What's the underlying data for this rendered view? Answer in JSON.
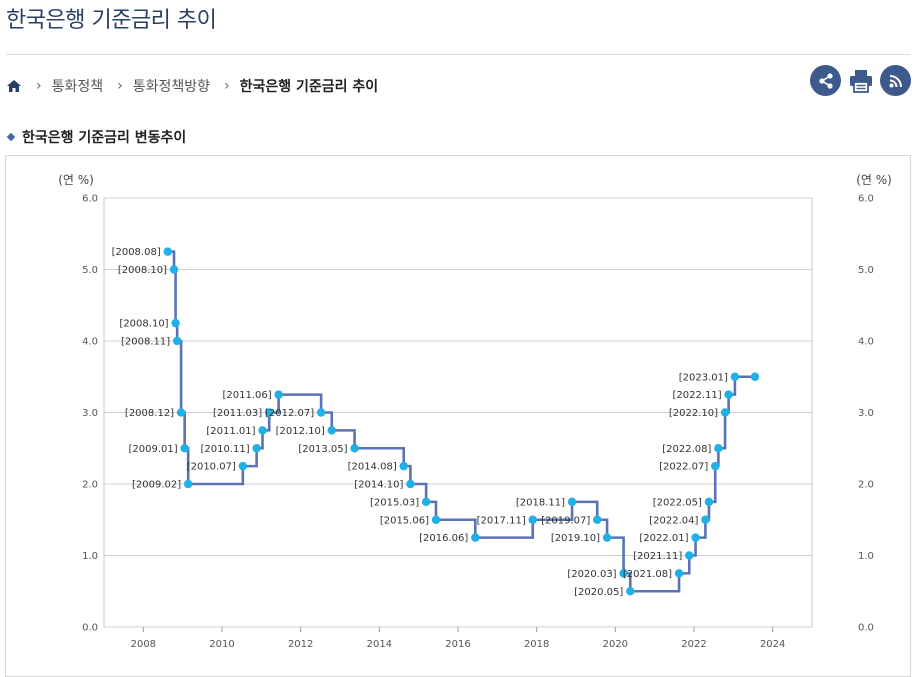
{
  "page": {
    "title": "한국은행 기준금리 추이",
    "section_title": "한국은행 기준금리 변동추이"
  },
  "breadcrumb": {
    "home_icon": "home-icon",
    "items": [
      "통화정책",
      "통화정책방향",
      "한국은행 기준금리 추이"
    ]
  },
  "tools": {
    "share_icon": "share-icon",
    "print_icon": "print-icon",
    "rss_icon": "rss-icon",
    "accent": "#3e5a8c"
  },
  "chart_data": {
    "type": "line",
    "subtype": "step",
    "title": "한국은행 기준금리 변동추이",
    "ylabel_left": "(연 %)",
    "ylabel_right": "(연 %)",
    "ylim": [
      0,
      6
    ],
    "y_ticks": [
      "0.0",
      "1.0",
      "2.0",
      "3.0",
      "4.0",
      "5.0",
      "6.0"
    ],
    "xlim": [
      2007,
      2025
    ],
    "x_ticks": [
      "2008",
      "2010",
      "2012",
      "2014",
      "2016",
      "2018",
      "2020",
      "2022",
      "2024"
    ],
    "line_color": "#5b73b5",
    "point_color": "#1eb0e6",
    "series": [
      {
        "name": "기준금리",
        "points": [
          {
            "label": "[2008.08]",
            "x": 2008.62,
            "y": 5.25
          },
          {
            "label": "[2008.10]",
            "x": 2008.78,
            "y": 5.0
          },
          {
            "label": "[2008.10]",
            "x": 2008.82,
            "y": 4.25
          },
          {
            "label": "[2008.11]",
            "x": 2008.86,
            "y": 4.0
          },
          {
            "label": "[2008.12]",
            "x": 2008.96,
            "y": 3.0
          },
          {
            "label": "[2009.01]",
            "x": 2009.05,
            "y": 2.5
          },
          {
            "label": "[2009.02]",
            "x": 2009.14,
            "y": 2.0
          },
          {
            "label": "[2010.07]",
            "x": 2010.53,
            "y": 2.25
          },
          {
            "label": "[2010.11]",
            "x": 2010.88,
            "y": 2.5
          },
          {
            "label": "[2011.01]",
            "x": 2011.03,
            "y": 2.75
          },
          {
            "label": "[2011.03]",
            "x": 2011.2,
            "y": 3.0
          },
          {
            "label": "[2011.06]",
            "x": 2011.44,
            "y": 3.25
          },
          {
            "label": "[2012.07]",
            "x": 2012.52,
            "y": 3.0
          },
          {
            "label": "[2012.10]",
            "x": 2012.79,
            "y": 2.75
          },
          {
            "label": "[2013.05]",
            "x": 2013.37,
            "y": 2.5
          },
          {
            "label": "[2014.08]",
            "x": 2014.62,
            "y": 2.25
          },
          {
            "label": "[2014.10]",
            "x": 2014.79,
            "y": 2.0
          },
          {
            "label": "[2015.03]",
            "x": 2015.19,
            "y": 1.75
          },
          {
            "label": "[2015.06]",
            "x": 2015.44,
            "y": 1.5
          },
          {
            "label": "[2016.06]",
            "x": 2016.44,
            "y": 1.25
          },
          {
            "label": "[2017.11]",
            "x": 2017.9,
            "y": 1.5
          },
          {
            "label": "[2018.11]",
            "x": 2018.9,
            "y": 1.75
          },
          {
            "label": "[2019.07]",
            "x": 2019.54,
            "y": 1.5
          },
          {
            "label": "[2019.10]",
            "x": 2019.79,
            "y": 1.25
          },
          {
            "label": "[2020.03]",
            "x": 2020.21,
            "y": 0.75
          },
          {
            "label": "[2020.05]",
            "x": 2020.38,
            "y": 0.5
          },
          {
            "label": "[2021.08]",
            "x": 2021.62,
            "y": 0.75
          },
          {
            "label": "[2021.11]",
            "x": 2021.88,
            "y": 1.0
          },
          {
            "label": "[2022.01]",
            "x": 2022.04,
            "y": 1.25
          },
          {
            "label": "[2022.04]",
            "x": 2022.29,
            "y": 1.5
          },
          {
            "label": "[2022.05]",
            "x": 2022.38,
            "y": 1.75
          },
          {
            "label": "[2022.07]",
            "x": 2022.54,
            "y": 2.25
          },
          {
            "label": "[2022.08]",
            "x": 2022.62,
            "y": 2.5
          },
          {
            "label": "[2022.10]",
            "x": 2022.79,
            "y": 3.0
          },
          {
            "label": "[2022.11]",
            "x": 2022.88,
            "y": 3.25
          },
          {
            "label": "[2023.01]",
            "x": 2023.04,
            "y": 3.5
          },
          {
            "label": "",
            "x": 2023.55,
            "y": 3.5
          }
        ]
      }
    ]
  }
}
